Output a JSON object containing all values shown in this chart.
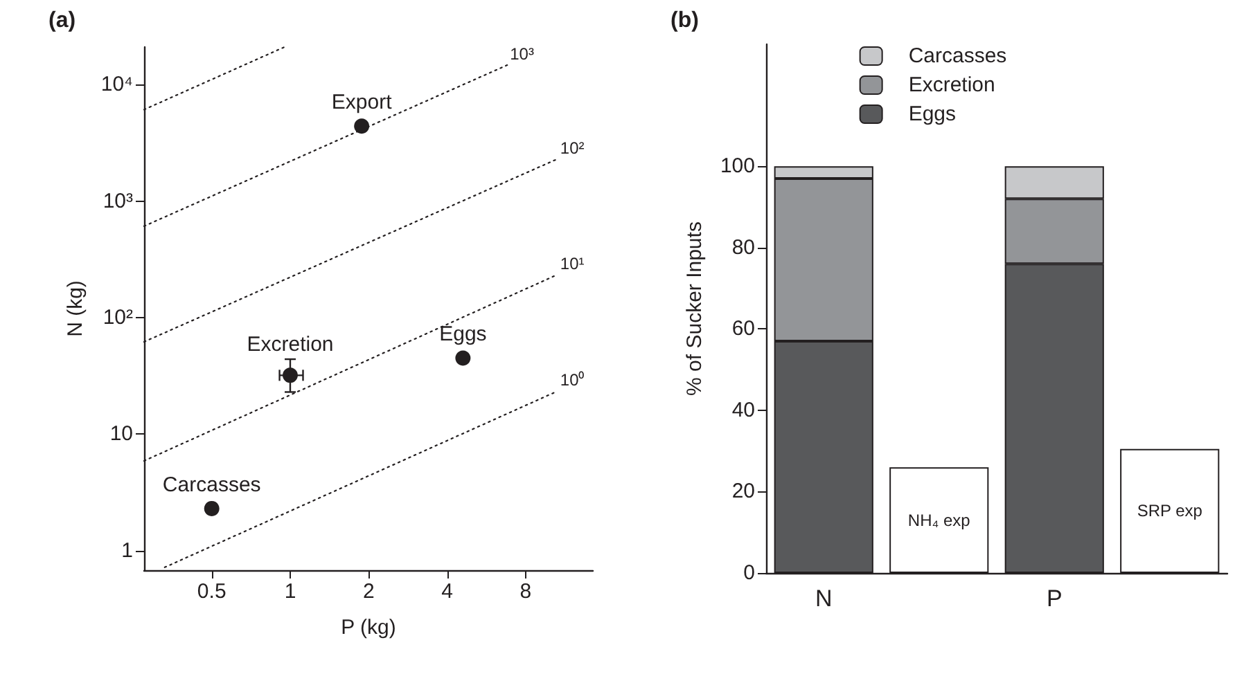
{
  "chart_data": [
    {
      "type": "scatter",
      "title": "(a)",
      "xlabel": "P (kg)",
      "ylabel": "N (kg)",
      "log": "xy",
      "grid": false,
      "legend": false,
      "marker": "circle",
      "xlim": [
        0.275,
        14.5
      ],
      "xticks": [
        0.5,
        1,
        2,
        4,
        8
      ],
      "ylim": [
        0.68,
        21000
      ],
      "yticks": [
        1,
        10,
        {
          "value": 100,
          "label": "10²"
        },
        {
          "value": 1000,
          "label": "10³"
        },
        {
          "value": 10000,
          "label": "10⁴"
        }
      ],
      "series": [
        {
          "name": "Export",
          "color": "#231f20",
          "x": [
            1.88
          ],
          "values": [
            4400
          ]
        },
        {
          "name": "Eggs",
          "color": "#231f20",
          "x": [
            4.6
          ],
          "values": [
            45
          ]
        },
        {
          "name": "Excretion",
          "color": "#231f20",
          "x": [
            1
          ],
          "values": [
            32
          ],
          "errors": [
            [
              23,
              44
            ]
          ],
          "xerrors": [
            [
              0.91,
              1.12
            ]
          ]
        },
        {
          "name": "Carcasses",
          "color": "#231f20",
          "x": [
            0.5
          ],
          "values": [
            2.3
          ]
        },
        {
          "type": "line",
          "name": "10⁰",
          "color": "#231f20",
          "marker": "none",
          "line_style": "dotted",
          "x": [
            0.33,
            10.6
          ],
          "values": [
            0.72,
            23.4
          ]
        },
        {
          "type": "line",
          "name": "10¹",
          "color": "#231f20",
          "marker": "none",
          "line_style": "dotted",
          "x": [
            0.275,
            10.6
          ],
          "values": [
            5.9,
            234
          ]
        },
        {
          "type": "line",
          "name": "10²",
          "color": "#231f20",
          "marker": "none",
          "line_style": "dotted",
          "x": [
            0.275,
            10.6
          ],
          "values": [
            62,
            2300
          ]
        },
        {
          "type": "line",
          "name": "10³",
          "color": "#231f20",
          "marker": "none",
          "line_style": "dotted",
          "x": [
            0.275,
            6.8
          ],
          "values": [
            610,
            14700
          ]
        },
        {
          "type": "line",
          "color": "#231f20",
          "marker": "none",
          "line_style": "dotted",
          "x": [
            0.275,
            0.95
          ],
          "values": [
            6100,
            21000
          ]
        }
      ]
    },
    {
      "type": "bar",
      "title": "(b)",
      "ylabel": "% of Sucker Inputs",
      "categories": [
        "N",
        null,
        "P",
        null
      ],
      "stacked": true,
      "grid": false,
      "legend": "top",
      "ylim": [
        0,
        130
      ],
      "yticks": [
        0,
        20,
        40,
        60,
        80,
        100
      ],
      "series": [
        {
          "name": "Eggs",
          "color": "#58595b",
          "values": [
            57,
            null,
            76,
            null
          ]
        },
        {
          "name": "Excretion",
          "color": "#939598",
          "values": [
            40,
            null,
            16,
            null
          ]
        },
        {
          "name": "Carcasses",
          "color": "#c7c8ca",
          "values": [
            3,
            null,
            8,
            null
          ]
        },
        {
          "color": "#ffffff",
          "values": [
            null,
            26,
            null,
            30.5
          ],
          "value_labels": [
            null,
            "NH₄ exp",
            null,
            "SRP exp"
          ]
        }
      ]
    }
  ]
}
